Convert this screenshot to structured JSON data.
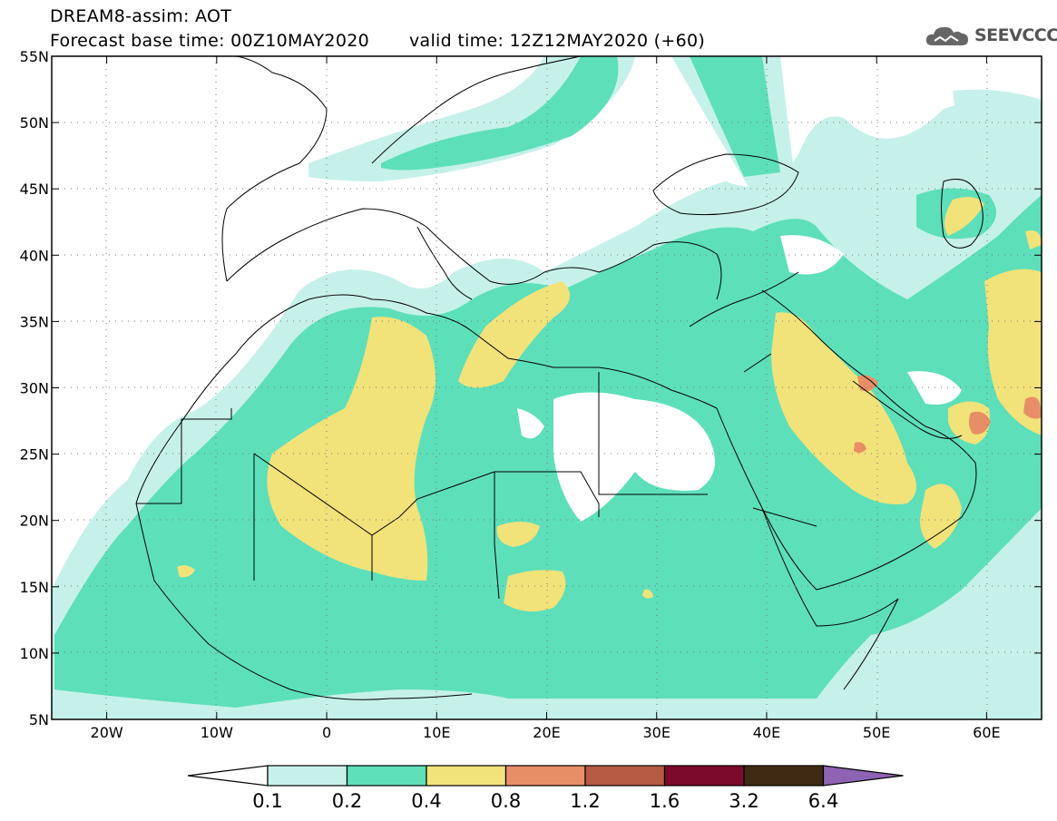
{
  "header": {
    "title_line1": "DREAM8-assim: AOT",
    "base_time": "Forecast base time: 00Z10MAY2020",
    "valid_time": "valid time: 12Z12MAY2020 (+60)"
  },
  "logo": {
    "text": "SEEVCCC",
    "icon": "cloud-icon"
  },
  "map": {
    "lon_range": [
      -25,
      65
    ],
    "lat_range": [
      5,
      55
    ],
    "lat_labels": [
      "55N",
      "50N",
      "45N",
      "40N",
      "35N",
      "30N",
      "25N",
      "20N",
      "15N",
      "10N",
      "5N"
    ],
    "lon_labels": [
      "20W",
      "10W",
      "0",
      "10E",
      "20E",
      "30E",
      "40E",
      "50E",
      "60E"
    ],
    "grid": "dotted"
  },
  "colorbar": {
    "labels": [
      "0.1",
      "0.2",
      "0.4",
      "0.8",
      "1.2",
      "1.6",
      "3.2",
      "6.4"
    ],
    "colors": [
      "#c6f1ea",
      "#5ddfba",
      "#f2e27a",
      "#e88e66",
      "#b65a44",
      "#7c0a2a",
      "#3f2a14"
    ],
    "below_color": "#ffffff",
    "above_color": "#8e63b3"
  },
  "palette": {
    "ocean": "#ffffff",
    "c01": "#c6f1ea",
    "c02": "#5ddfba",
    "c04": "#f2e27a",
    "c08": "#e88e66",
    "coast": "#000000"
  }
}
